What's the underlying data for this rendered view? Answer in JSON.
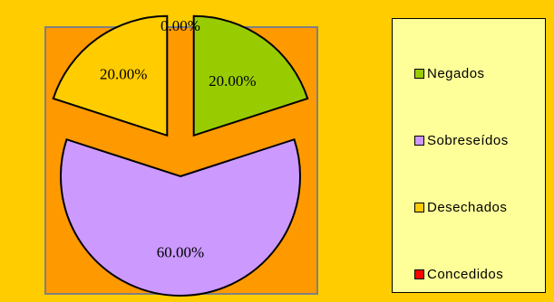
{
  "chart_data": {
    "type": "pie",
    "categories": [
      "Negados",
      "Sobreseídos",
      "Desechados",
      "Concedidos"
    ],
    "values": [
      20.0,
      60.0,
      20.0,
      0.0
    ],
    "data_labels": [
      "20.00%",
      "60.00%",
      "20.00%",
      "0.00%"
    ],
    "colors": [
      "#99cc00",
      "#cc99ff",
      "#ffcc00",
      "#ff0000"
    ],
    "title": "",
    "legend_position": "right",
    "exploded": true,
    "plot_background": "#ff9900"
  },
  "legend": {
    "items": [
      {
        "label": "Negados",
        "color": "#99cc00"
      },
      {
        "label": "Sobreseídos",
        "color": "#cc99ff"
      },
      {
        "label": "Desechados",
        "color": "#ffcc00"
      },
      {
        "label": "Concedidos",
        "color": "#ff0000"
      }
    ]
  }
}
